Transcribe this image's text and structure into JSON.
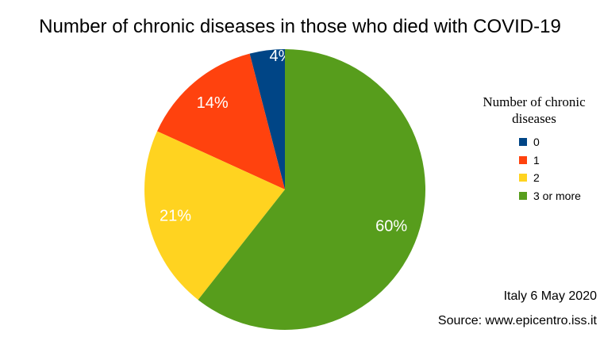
{
  "chart_data": {
    "type": "pie",
    "title": "Number of chronic diseases in those who died with COVID-19",
    "categories": [
      "0",
      "1",
      "2",
      "3 or more"
    ],
    "values": [
      4,
      14,
      21,
      60
    ],
    "labels": [
      "4%",
      "14%",
      "21%",
      "60%"
    ],
    "colors": [
      "#004586",
      "#ff420e",
      "#ffd320",
      "#579d1c"
    ],
    "legend": {
      "title": "Number of chronic diseases",
      "placement": "right"
    }
  },
  "notes": {
    "date": "Italy 6 May 2020",
    "source": "Source: www.epicentro.iss.it"
  }
}
